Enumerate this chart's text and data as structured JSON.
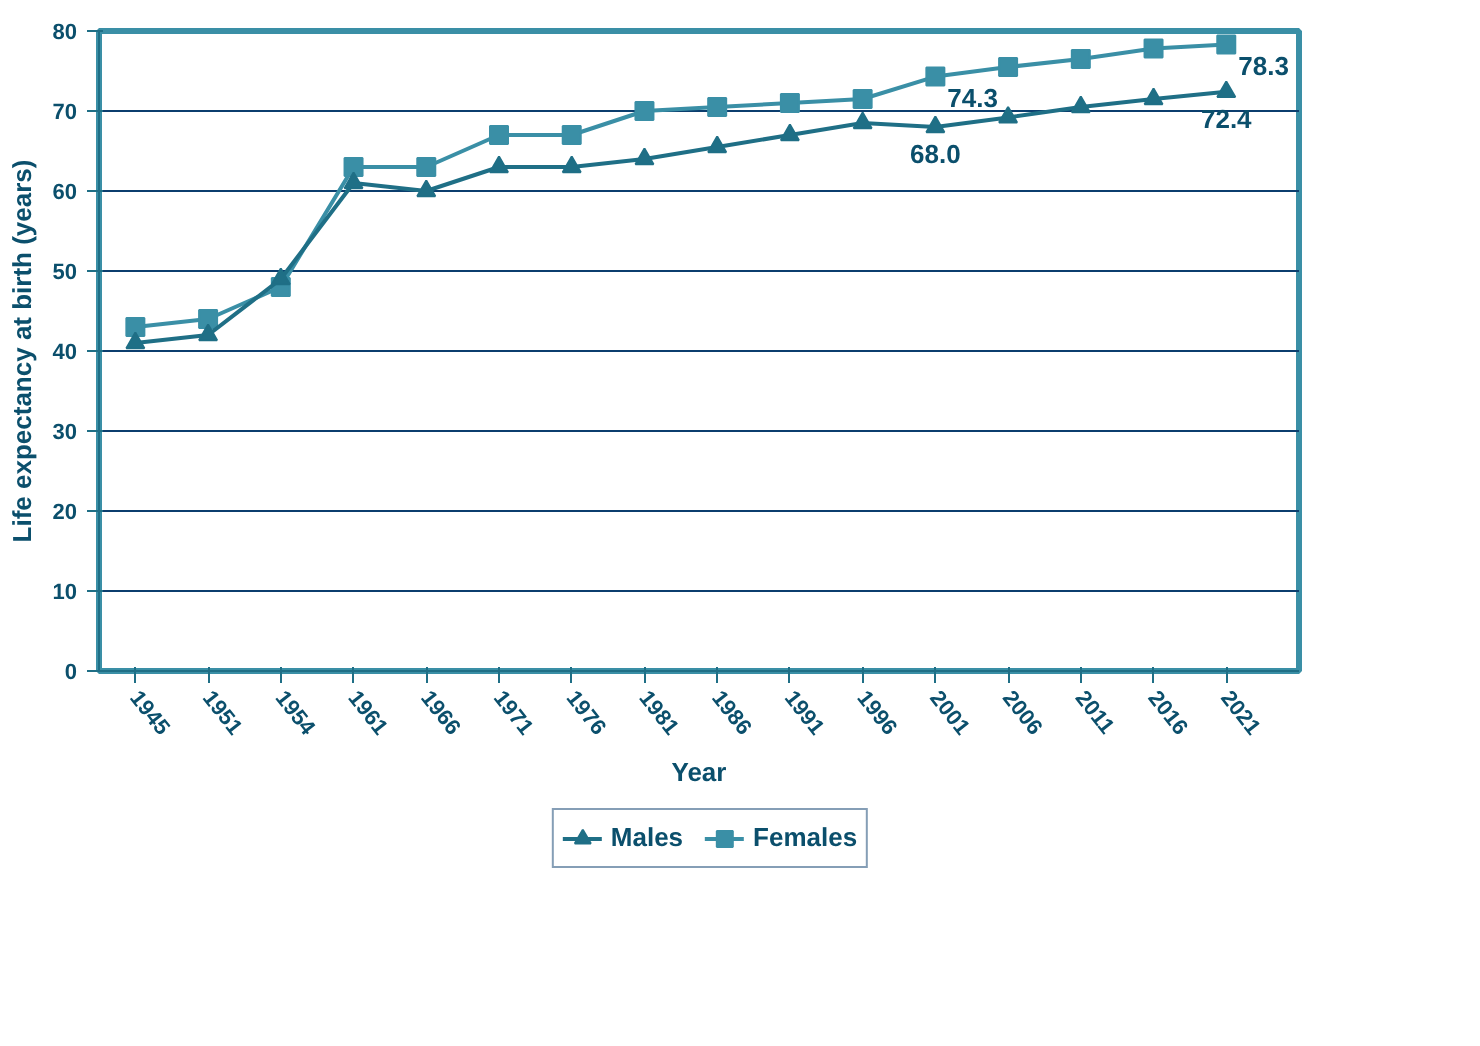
{
  "chart_data": {
    "type": "line",
    "xlabel": "Year",
    "ylabel": "Life expectancy at birth (years)",
    "categories": [
      "1945",
      "1951",
      "1954",
      "1961",
      "1966",
      "1971",
      "1976",
      "1981",
      "1986",
      "1991",
      "1996",
      "2001",
      "2006",
      "2011",
      "2016",
      "2021"
    ],
    "series": [
      {
        "name": "Males",
        "color": "#1f6f86",
        "marker": "triangle",
        "values": [
          41,
          42,
          49,
          61,
          60,
          63,
          63,
          64,
          65.5,
          67,
          68.5,
          68.0,
          69.2,
          70.5,
          71.5,
          72.4
        ],
        "value_labels": [
          null,
          null,
          null,
          null,
          null,
          null,
          null,
          null,
          null,
          null,
          null,
          "68.0",
          null,
          null,
          null,
          "72.4"
        ]
      },
      {
        "name": "Females",
        "color": "#3a8fa6",
        "marker": "square",
        "values": [
          43,
          44,
          48,
          63,
          63,
          67,
          67,
          70,
          70.5,
          71,
          71.5,
          74.3,
          75.5,
          76.5,
          77.8,
          78.3
        ],
        "value_labels": [
          null,
          null,
          null,
          null,
          null,
          null,
          null,
          null,
          null,
          null,
          null,
          "74.3",
          null,
          null,
          null,
          "78.3"
        ]
      }
    ],
    "ylim": [
      0,
      80
    ],
    "yticks": [
      0,
      10,
      20,
      30,
      40,
      50,
      60,
      70,
      80
    ],
    "grid": "y",
    "legend": "bottom",
    "line_style": "solid"
  }
}
